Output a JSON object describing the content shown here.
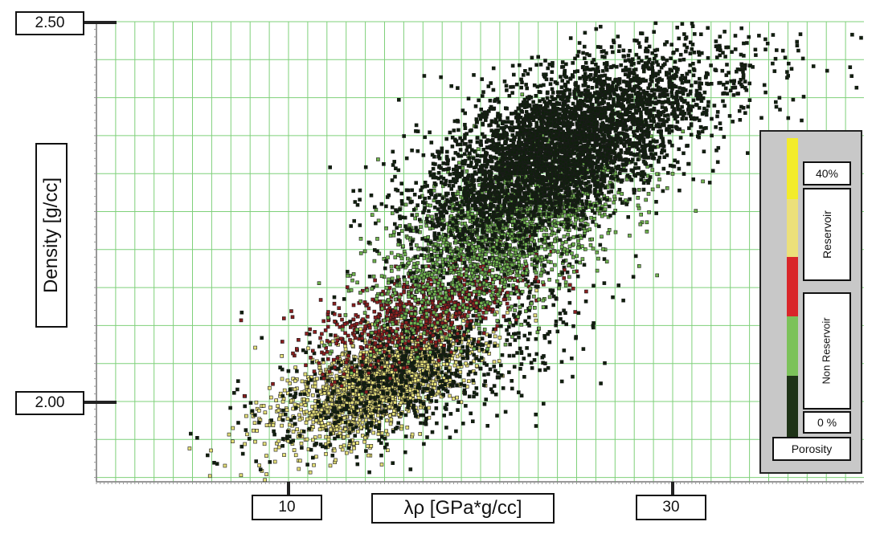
{
  "chart_data": {
    "type": "scatter",
    "title": "",
    "xlabel": "λρ [GPa*g/cc]",
    "ylabel": "Density [g/cc]",
    "x_tick_labels": [
      "10",
      "30"
    ],
    "x_ticks": [
      10,
      30
    ],
    "y_tick_labels": [
      "2.50",
      "2.00"
    ],
    "y_ticks": [
      2.5,
      2.0
    ],
    "xlim": [
      0,
      40
    ],
    "ylim": [
      1.9,
      2.5
    ],
    "grid": true,
    "legend": {
      "placement": "right",
      "title": "Porosity",
      "top_label": "40%",
      "bottom_label": "0 %",
      "reservoir_label": "Reservoir",
      "non_reservoir_label": "Non Reservoir",
      "colors_top_to_bottom": [
        "#f3ec2b",
        "#ece07a",
        "#d9262a",
        "#7cc25a",
        "#1e3317"
      ]
    },
    "clusters": [
      {
        "color_class": "yellow",
        "center": [
          15,
          2.03
        ],
        "spread": [
          2.2,
          0.035
        ],
        "count": 1800
      },
      {
        "color_class": "yellow",
        "center": [
          13,
          2.0
        ],
        "spread": [
          3.0,
          0.05
        ],
        "count": 350
      },
      {
        "color_class": "red",
        "center": [
          17,
          2.12
        ],
        "spread": [
          2.8,
          0.035
        ],
        "count": 700
      },
      {
        "color_class": "green",
        "center": [
          21,
          2.22
        ],
        "spread": [
          3.2,
          0.06
        ],
        "count": 2000
      },
      {
        "color_class": "dark",
        "center": [
          24,
          2.33
        ],
        "spread": [
          3.5,
          0.06
        ],
        "count": 3800
      },
      {
        "color_class": "dark",
        "center": [
          17,
          2.05
        ],
        "spread": [
          4.0,
          0.06
        ],
        "count": 900
      },
      {
        "color_class": "dark",
        "center": [
          28,
          2.4
        ],
        "spread": [
          5.0,
          0.05
        ],
        "count": 500
      }
    ]
  },
  "colors": {
    "grid": "#7fd07a",
    "yellow": "#e6e07a",
    "red": "#8a1e1e",
    "green": "#6fb24e",
    "dark": "#10200d",
    "marker_edge": "#1b1b1b"
  }
}
